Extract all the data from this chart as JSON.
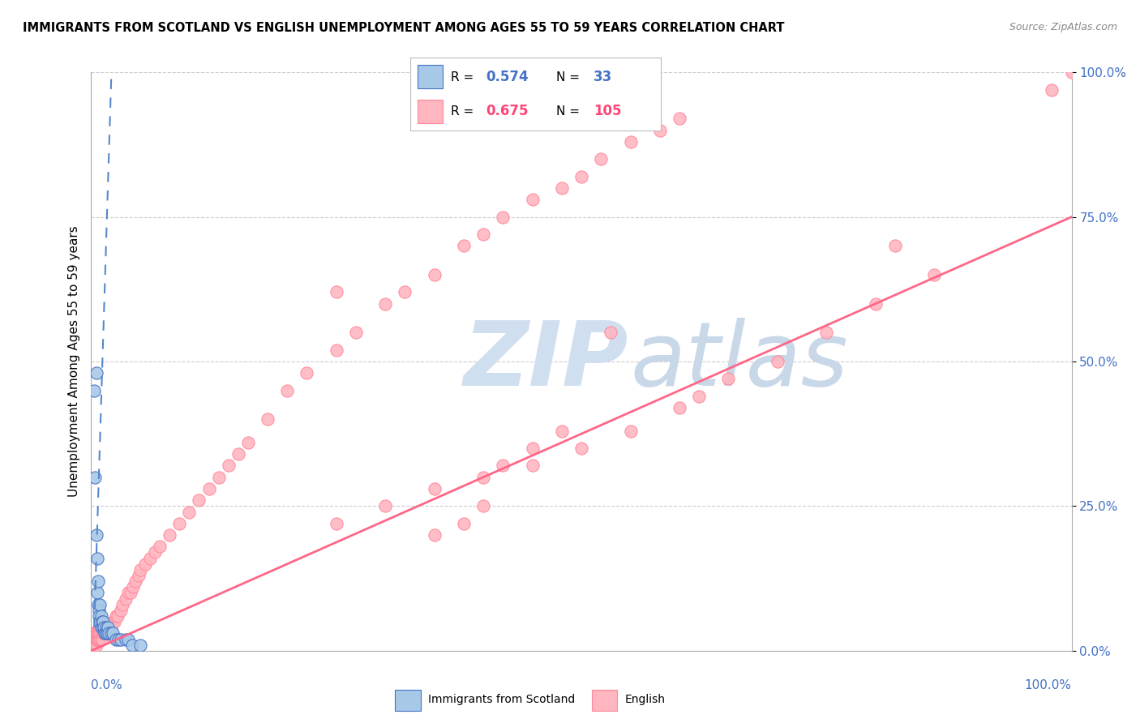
{
  "title": "IMMIGRANTS FROM SCOTLAND VS ENGLISH UNEMPLOYMENT AMONG AGES 55 TO 59 YEARS CORRELATION CHART",
  "source": "Source: ZipAtlas.com",
  "ylabel": "Unemployment Among Ages 55 to 59 years",
  "xlim": [
    0,
    1.0
  ],
  "ylim": [
    0,
    1.0
  ],
  "ytick_labels": [
    "0.0%",
    "25.0%",
    "50.0%",
    "75.0%",
    "100.0%"
  ],
  "ytick_values": [
    0.0,
    0.25,
    0.5,
    0.75,
    1.0
  ],
  "color_scotland_fill": "#a8c8e8",
  "color_scotland_edge": "#4472c4",
  "color_english_fill": "#ffb6c1",
  "color_english_edge": "#ff8899",
  "color_trend_scotland": "#5588cc",
  "color_trend_english": "#ff6688",
  "watermark_zip_color": "#d0dff0",
  "watermark_atlas_color": "#c8d8e8"
}
